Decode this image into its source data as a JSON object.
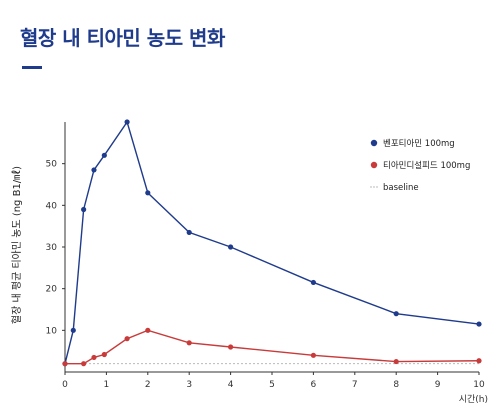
{
  "page": {
    "title": "혈장 내 티아민 농도 변화"
  },
  "chart_data": {
    "type": "line",
    "ylabel": "혈장 내 평균 티아민 농도 (ng B1/㎖)",
    "xlabel": "시간(h)",
    "xlim": [
      0,
      10
    ],
    "ylim": [
      0,
      60
    ],
    "x_ticks": [
      0,
      1,
      2,
      3,
      4,
      5,
      6,
      7,
      8,
      9,
      10
    ],
    "y_ticks": [
      10,
      20,
      30,
      40,
      50
    ],
    "series": [
      {
        "name": "벤포티아민 100mg",
        "color": "#1f3b8c",
        "points": [
          [
            0,
            2
          ],
          [
            0.2,
            10
          ],
          [
            0.45,
            39
          ],
          [
            0.7,
            48.5
          ],
          [
            0.95,
            52
          ],
          [
            1.5,
            60
          ],
          [
            2,
            43
          ],
          [
            3,
            33.5
          ],
          [
            4,
            30
          ],
          [
            6,
            21.5
          ],
          [
            8,
            14
          ],
          [
            10,
            11.5
          ]
        ]
      },
      {
        "name": "티아민디설피드 100mg",
        "color": "#c93a3a",
        "points": [
          [
            0,
            2
          ],
          [
            0.45,
            2
          ],
          [
            0.7,
            3.5
          ],
          [
            0.95,
            4.2
          ],
          [
            1.5,
            8
          ],
          [
            2,
            10
          ],
          [
            3,
            7
          ],
          [
            4,
            6
          ],
          [
            6,
            4
          ],
          [
            8,
            2.5
          ],
          [
            10,
            2.7
          ]
        ]
      }
    ],
    "baseline": {
      "name": "baseline",
      "value": 2,
      "color": "#bbbbbb"
    },
    "legend_position": "top-right",
    "grid": false
  }
}
